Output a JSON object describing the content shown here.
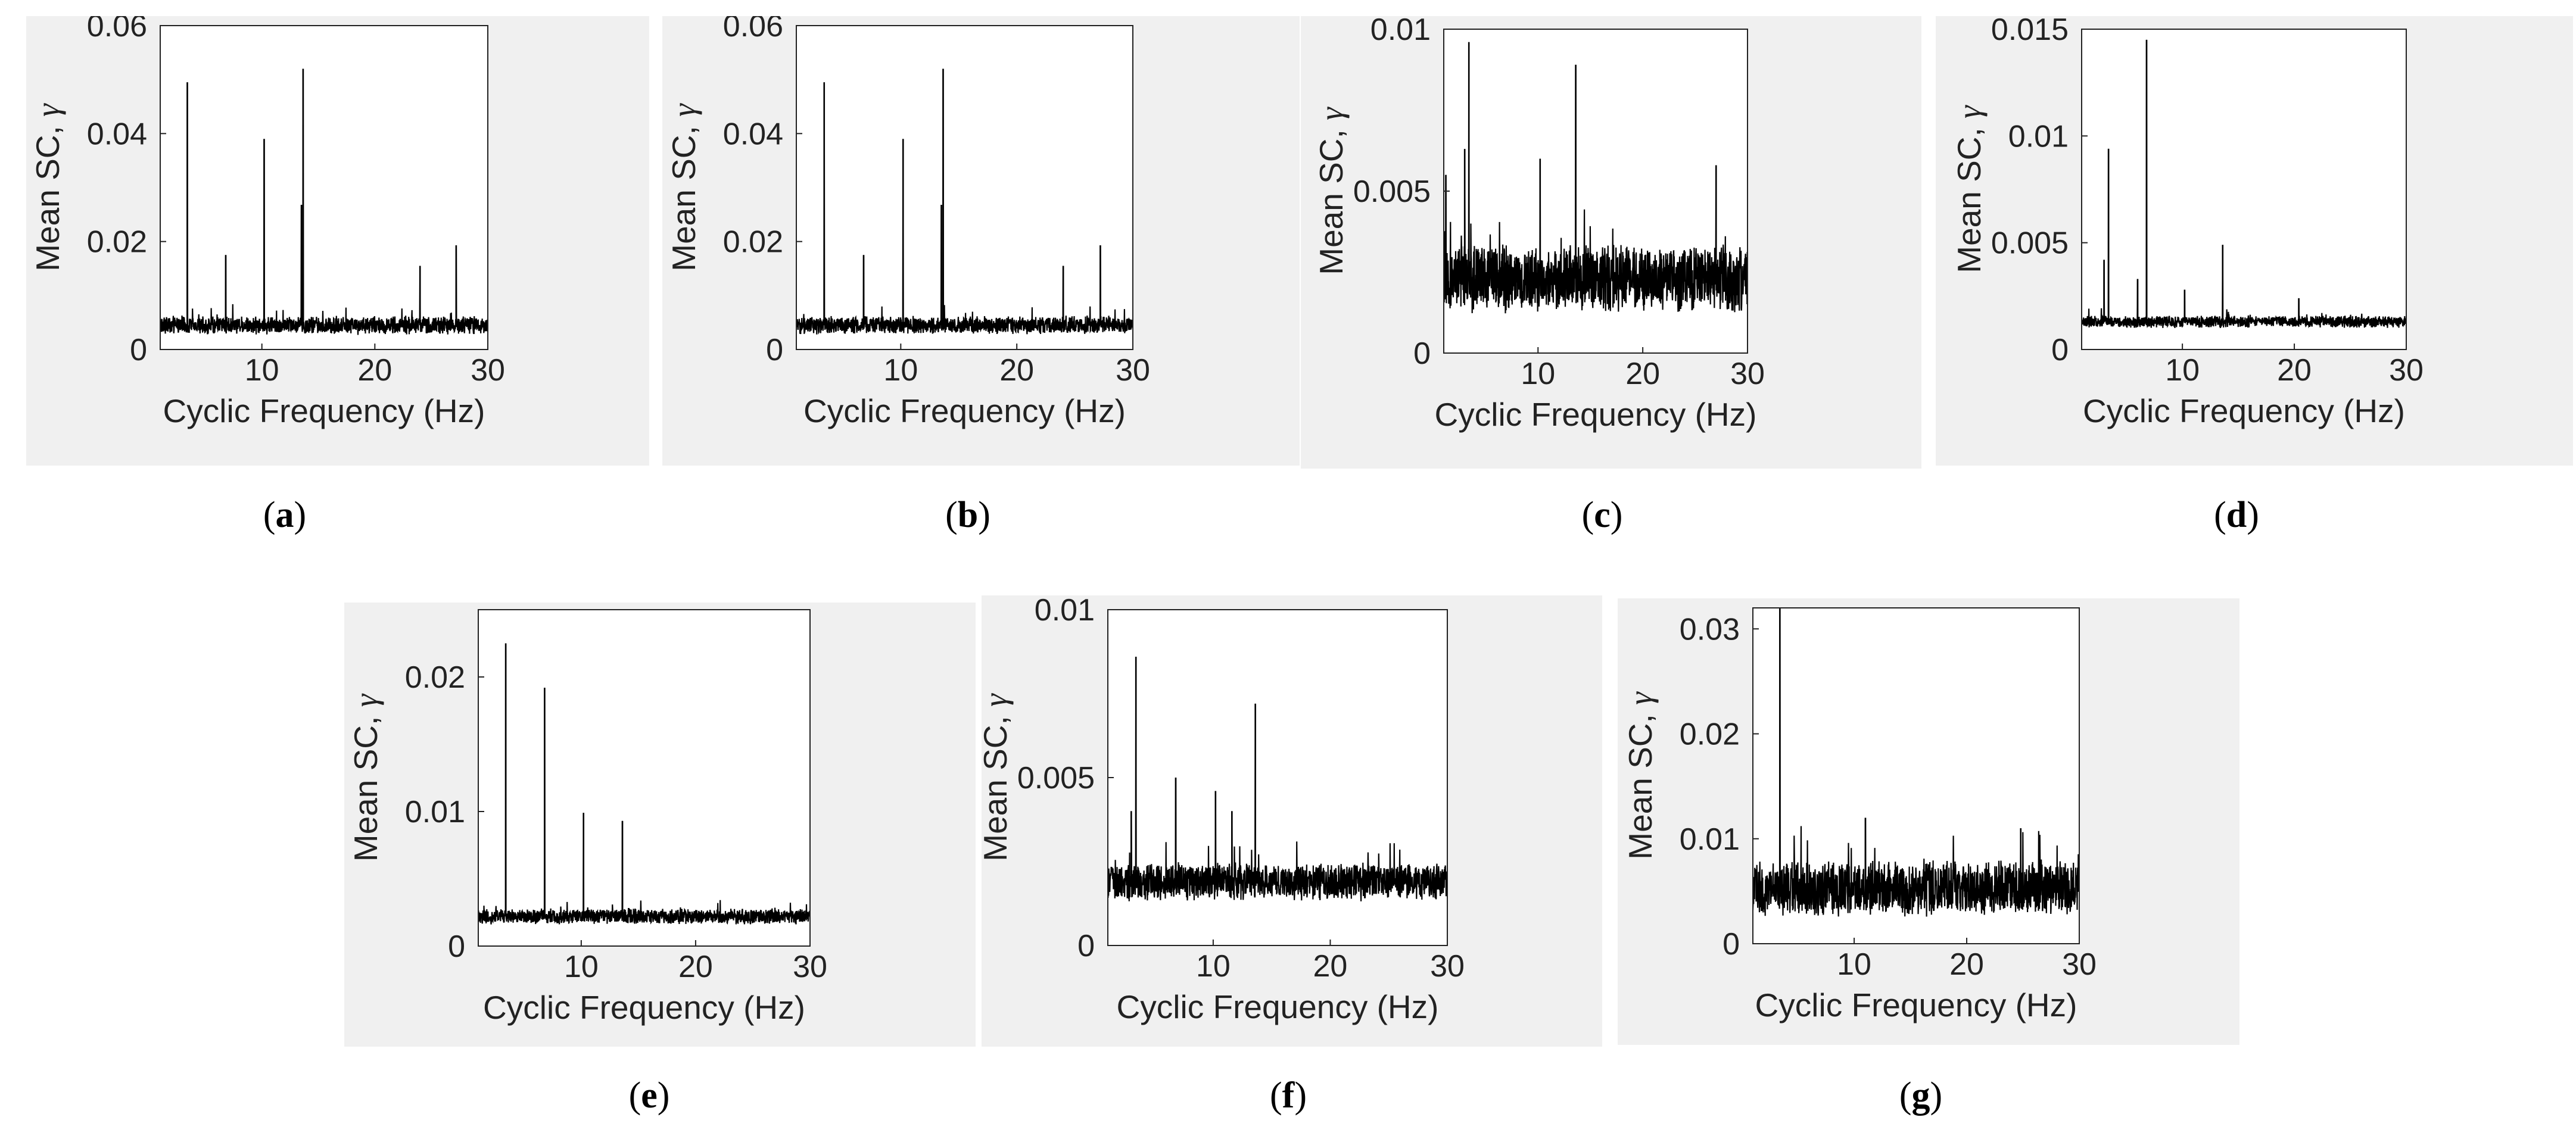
{
  "figure": {
    "captions": [
      "a",
      "b",
      "c",
      "d",
      "e",
      "f",
      "g"
    ]
  },
  "chart_data": [
    {
      "id": "a",
      "type": "line",
      "title": "",
      "xlabel": "Cyclic Frequency (Hz)",
      "ylabel": "Mean SC,",
      "ylabel_symbol": "γ",
      "xlim": [
        1,
        30
      ],
      "ylim": [
        0,
        0.06
      ],
      "xticks": [
        10,
        20,
        30
      ],
      "xtick_labels": [
        "10",
        "20",
        "30"
      ],
      "yticks": [
        0,
        0.02,
        0.04,
        0.06
      ],
      "ytick_labels": [
        "0",
        "0.02",
        "0.04",
        "0.06"
      ],
      "series": [
        {
          "name": "Mean SC",
          "baseline": 0.0045,
          "noise": 0.0018,
          "peaks": [
            [
              3.4,
              0.0495
            ],
            [
              6.8,
              0.0175
            ],
            [
              10.2,
              0.039
            ],
            [
              13.5,
              0.0268
            ],
            [
              13.65,
              0.052
            ],
            [
              24.0,
              0.0155
            ],
            [
              27.2,
              0.0193
            ]
          ]
        }
      ]
    },
    {
      "id": "b",
      "type": "line",
      "title": "",
      "xlabel": "Cyclic Frequency (Hz)",
      "ylabel": "Mean SC,",
      "ylabel_symbol": "γ",
      "xlim": [
        1,
        30
      ],
      "ylim": [
        0,
        0.06
      ],
      "xticks": [
        10,
        20,
        30
      ],
      "xtick_labels": [
        "10",
        "20",
        "30"
      ],
      "yticks": [
        0,
        0.02,
        0.04,
        0.06
      ],
      "ytick_labels": [
        "0",
        "0.02",
        "0.04",
        "0.06"
      ],
      "series": [
        {
          "name": "Mean SC",
          "baseline": 0.0045,
          "noise": 0.0018,
          "peaks": [
            [
              3.4,
              0.0495
            ],
            [
              6.8,
              0.0175
            ],
            [
              10.2,
              0.039
            ],
            [
              13.5,
              0.0268
            ],
            [
              13.65,
              0.052
            ],
            [
              24.0,
              0.0155
            ],
            [
              27.2,
              0.0193
            ]
          ]
        }
      ]
    },
    {
      "id": "c",
      "type": "line",
      "title": "",
      "xlabel": "Cyclic Frequency (Hz)",
      "ylabel": "Mean SC,",
      "ylabel_symbol": "γ",
      "xlim": [
        1,
        30
      ],
      "ylim": [
        0,
        0.01
      ],
      "xticks": [
        10,
        20,
        30
      ],
      "xtick_labels": [
        "10",
        "20",
        "30"
      ],
      "yticks": [
        0,
        0.005,
        0.01
      ],
      "ytick_labels": [
        "0",
        "0.005",
        "0.01"
      ],
      "series": [
        {
          "name": "Mean SC",
          "baseline": 0.0023,
          "noise": 0.0011,
          "peaks": [
            [
              1.2,
              0.0055
            ],
            [
              3.0,
              0.0063
            ],
            [
              3.4,
              0.0096
            ],
            [
              10.2,
              0.006
            ],
            [
              13.6,
              0.0089
            ],
            [
              27.0,
              0.0058
            ]
          ]
        }
      ]
    },
    {
      "id": "d",
      "type": "line",
      "title": "",
      "xlabel": "Cyclic Frequency (Hz)",
      "ylabel": "Mean SC,",
      "ylabel_symbol": "γ",
      "xlim": [
        1,
        30
      ],
      "ylim": [
        0,
        0.015
      ],
      "xticks": [
        10,
        20,
        30
      ],
      "xtick_labels": [
        "10",
        "20",
        "30"
      ],
      "yticks": [
        0,
        0.005,
        0.01,
        0.015
      ],
      "ytick_labels": [
        "0",
        "0.005",
        "0.01",
        "0.015"
      ],
      "series": [
        {
          "name": "Mean SC",
          "baseline": 0.0013,
          "noise": 0.0003,
          "peaks": [
            [
              3.0,
              0.0042
            ],
            [
              3.4,
              0.0094
            ],
            [
              6.0,
              0.0033
            ],
            [
              6.8,
              0.0145
            ],
            [
              10.2,
              0.0028
            ],
            [
              13.6,
              0.0049
            ],
            [
              20.4,
              0.0024
            ]
          ]
        }
      ]
    },
    {
      "id": "e",
      "type": "line",
      "title": "",
      "xlabel": "Cyclic Frequency (Hz)",
      "ylabel": "Mean SC,",
      "ylabel_symbol": "γ",
      "xlim": [
        1,
        30
      ],
      "ylim": [
        0,
        0.025
      ],
      "xticks": [
        10,
        20,
        30
      ],
      "xtick_labels": [
        "10",
        "20",
        "30"
      ],
      "yticks": [
        0,
        0.01,
        0.02
      ],
      "ytick_labels": [
        "0",
        "0.01",
        "0.02"
      ],
      "series": [
        {
          "name": "Mean SC",
          "baseline": 0.0022,
          "noise": 0.0006,
          "peaks": [
            [
              3.4,
              0.0225
            ],
            [
              6.8,
              0.0192
            ],
            [
              10.2,
              0.0099
            ],
            [
              13.6,
              0.0093
            ]
          ]
        }
      ]
    },
    {
      "id": "f",
      "type": "line",
      "title": "",
      "xlabel": "Cyclic Frequency (Hz)",
      "ylabel": "Mean SC,",
      "ylabel_symbol": "γ",
      "xlim": [
        1,
        30
      ],
      "ylim": [
        0,
        0.01
      ],
      "xticks": [
        10,
        20,
        30
      ],
      "xtick_labels": [
        "10",
        "20",
        "30"
      ],
      "yticks": [
        0,
        0.005,
        0.01
      ],
      "ytick_labels": [
        "0",
        "0.005",
        "0.01"
      ],
      "series": [
        {
          "name": "Mean SC",
          "baseline": 0.0019,
          "noise": 0.0006,
          "peaks": [
            [
              3.0,
              0.004
            ],
            [
              3.4,
              0.0086
            ],
            [
              6.8,
              0.005
            ],
            [
              10.2,
              0.0046
            ],
            [
              11.6,
              0.004
            ],
            [
              13.6,
              0.0072
            ]
          ]
        }
      ]
    },
    {
      "id": "g",
      "type": "line",
      "title": "",
      "xlabel": "Cyclic Frequency (Hz)",
      "ylabel": "Mean SC,",
      "ylabel_symbol": "γ",
      "xlim": [
        1,
        30
      ],
      "ylim": [
        0,
        0.032
      ],
      "xticks": [
        10,
        20,
        30
      ],
      "xtick_labels": [
        "10",
        "20",
        "30"
      ],
      "yticks": [
        0,
        0.01,
        0.02,
        0.03
      ],
      "ytick_labels": [
        "0",
        "0.01",
        "0.02",
        "0.03"
      ],
      "series": [
        {
          "name": "Mean SC",
          "baseline": 0.0052,
          "noise": 0.0028,
          "peaks": [
            [
              3.4,
              0.032
            ],
            [
              11.0,
              0.012
            ],
            [
              24.8,
              0.011
            ]
          ]
        }
      ]
    }
  ]
}
